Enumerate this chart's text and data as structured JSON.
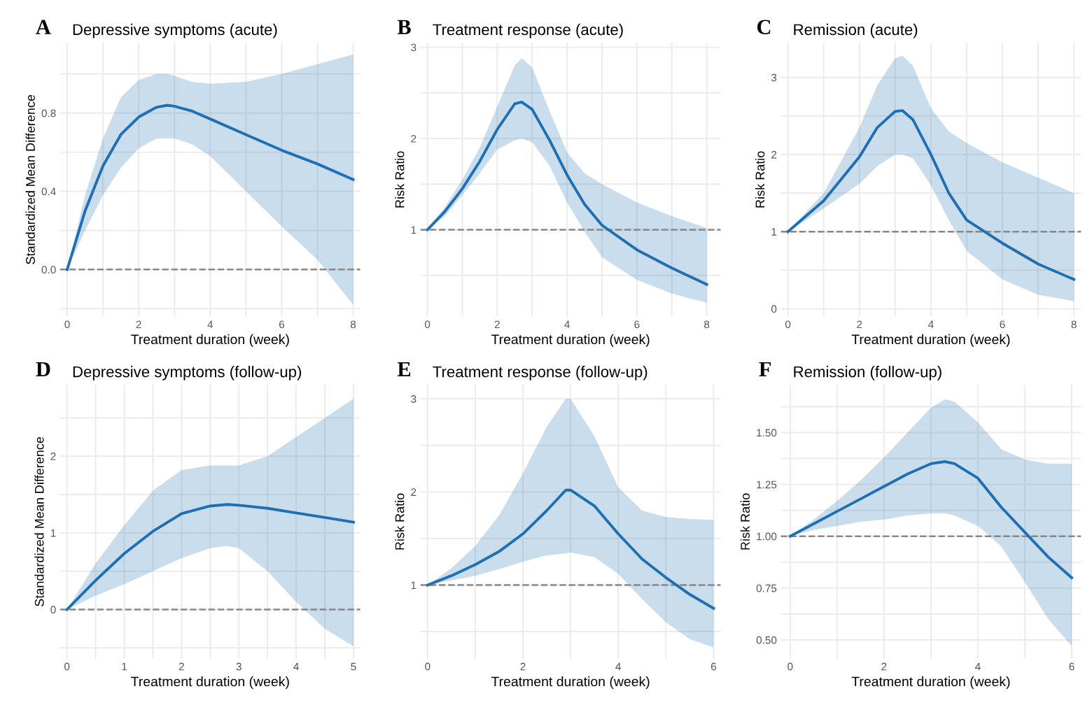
{
  "chart_data": [
    {
      "type": "line",
      "title": "Depressive symptoms (acute)",
      "annotations": [
        "A"
      ],
      "xlabel": "Treatment duration (week)",
      "ylabel": "Standardized Mean Difference",
      "xlim": [
        -0.2,
        8.2
      ],
      "ylim": [
        -0.24,
        1.16
      ],
      "xticks": [
        0,
        {
          "value": 1,
          "label": null
        },
        2,
        {
          "value": 3,
          "label": null
        },
        4,
        {
          "value": 5,
          "label": null
        },
        6,
        {
          "value": 7,
          "label": null
        },
        8
      ],
      "yticks": [
        {
          "value": -0.2,
          "label": null
        },
        {
          "value": 0,
          "label": "0.0"
        },
        {
          "value": 0.2,
          "label": null
        },
        0.4,
        {
          "value": 0.6,
          "label": null
        },
        0.8,
        {
          "value": 1.0,
          "label": null
        }
      ],
      "grid": true,
      "ref_lines": [
        {
          "axis": "y",
          "value": 0,
          "color": "#888888",
          "line_style": "dashed"
        }
      ],
      "series": [
        {
          "color": "#1f6fb4",
          "x": [
            0,
            0.5,
            1,
            1.5,
            2,
            2.5,
            2.8,
            3,
            3.5,
            4,
            5,
            6,
            7,
            8
          ],
          "values": [
            0,
            0.3,
            0.53,
            0.69,
            0.78,
            0.83,
            0.84,
            0.835,
            0.81,
            0.77,
            0.69,
            0.61,
            0.54,
            0.46
          ],
          "upper": [
            0,
            0.38,
            0.67,
            0.88,
            0.97,
            1.0,
            1.0,
            0.99,
            0.96,
            0.95,
            0.96,
            1.0,
            1.05,
            1.1
          ],
          "lower": [
            0,
            0.2,
            0.38,
            0.52,
            0.62,
            0.67,
            0.67,
            0.67,
            0.64,
            0.58,
            0.4,
            0.22,
            0.05,
            -0.18
          ]
        }
      ]
    },
    {
      "type": "line",
      "title": "Treatment response (acute)",
      "annotations": [
        "B"
      ],
      "xlabel": "Treatment duration (week)",
      "ylabel": "Risk Ratio",
      "xlim": [
        -0.2,
        8.4
      ],
      "ylim": [
        0.05,
        3.05
      ],
      "xticks": [
        0,
        {
          "value": 1,
          "label": null
        },
        2,
        {
          "value": 3,
          "label": null
        },
        4,
        {
          "value": 5,
          "label": null
        },
        6,
        {
          "value": 7,
          "label": null
        },
        8
      ],
      "yticks": [
        {
          "value": 0.5,
          "label": null
        },
        1,
        {
          "value": 1.5,
          "label": null
        },
        2,
        {
          "value": 2.5,
          "label": null
        },
        3
      ],
      "grid": true,
      "ref_lines": [
        {
          "axis": "y",
          "value": 1,
          "color": "#888888",
          "line_style": "dashed"
        }
      ],
      "series": [
        {
          "color": "#1f6fb4",
          "x": [
            0,
            0.5,
            1,
            1.5,
            2,
            2.5,
            2.7,
            3,
            3.5,
            4,
            4.5,
            5,
            6,
            7,
            8
          ],
          "values": [
            1,
            1.2,
            1.45,
            1.75,
            2.1,
            2.38,
            2.4,
            2.32,
            1.98,
            1.6,
            1.28,
            1.05,
            0.78,
            0.58,
            0.4
          ],
          "upper": [
            1,
            1.25,
            1.55,
            1.9,
            2.35,
            2.8,
            2.88,
            2.78,
            2.3,
            1.85,
            1.62,
            1.5,
            1.3,
            1.15,
            1.02
          ],
          "lower": [
            1,
            1.15,
            1.38,
            1.62,
            1.88,
            1.98,
            2.0,
            1.96,
            1.7,
            1.3,
            0.98,
            0.7,
            0.45,
            0.3,
            0.2
          ]
        }
      ]
    },
    {
      "type": "line",
      "title": "Remission (acute)",
      "annotations": [
        "C"
      ],
      "xlabel": "Treatment duration (week)",
      "ylabel": "Risk Ratio",
      "xlim": [
        -0.2,
        8.2
      ],
      "ylim": [
        -0.1,
        3.45
      ],
      "xticks": [
        0,
        {
          "value": 1,
          "label": null
        },
        2,
        {
          "value": 3,
          "label": null
        },
        4,
        {
          "value": 5,
          "label": null
        },
        6,
        {
          "value": 7,
          "label": null
        },
        8
      ],
      "yticks": [
        0,
        {
          "value": 0.5,
          "label": null
        },
        1,
        {
          "value": 1.5,
          "label": null
        },
        2,
        {
          "value": 2.5,
          "label": null
        },
        3
      ],
      "grid": true,
      "ref_lines": [
        {
          "axis": "y",
          "value": 1,
          "color": "#888888",
          "line_style": "dashed"
        }
      ],
      "series": [
        {
          "color": "#1f6fb4",
          "x": [
            0,
            1,
            2,
            2.5,
            3,
            3.2,
            3.5,
            4,
            4.5,
            5,
            6,
            7,
            8
          ],
          "values": [
            1,
            1.4,
            1.97,
            2.35,
            2.56,
            2.57,
            2.45,
            2.0,
            1.5,
            1.15,
            0.85,
            0.58,
            0.38
          ],
          "upper": [
            1,
            1.5,
            2.35,
            2.9,
            3.25,
            3.28,
            3.15,
            2.6,
            2.3,
            2.15,
            1.9,
            1.7,
            1.5
          ],
          "lower": [
            1,
            1.3,
            1.62,
            1.85,
            2.0,
            2.0,
            1.95,
            1.6,
            1.15,
            0.75,
            0.38,
            0.18,
            0.1
          ]
        }
      ]
    },
    {
      "type": "line",
      "title": "Depressive symptoms (follow-up)",
      "annotations": [
        "D"
      ],
      "xlabel": "Treatment duration (week)",
      "ylabel": "Standardized Mean Difference",
      "xlim": [
        -0.12,
        5.12
      ],
      "ylim": [
        -0.64,
        2.93
      ],
      "xticks": [
        0,
        {
          "value": 0.5,
          "label": null
        },
        1,
        {
          "value": 1.5,
          "label": null
        },
        2,
        {
          "value": 2.5,
          "label": null
        },
        3,
        {
          "value": 3.5,
          "label": null
        },
        4,
        {
          "value": 4.5,
          "label": null
        },
        5
      ],
      "yticks": [
        {
          "value": -0.5,
          "label": null
        },
        0,
        {
          "value": 0.5,
          "label": null
        },
        1,
        {
          "value": 1.5,
          "label": null
        },
        2,
        {
          "value": 2.5,
          "label": null
        }
      ],
      "grid": true,
      "ref_lines": [
        {
          "axis": "y",
          "value": 0,
          "color": "#888888",
          "line_style": "dashed"
        }
      ],
      "series": [
        {
          "color": "#1f6fb4",
          "x": [
            0,
            0.5,
            1,
            1.5,
            2,
            2.5,
            2.8,
            3,
            3.5,
            4,
            4.5,
            5
          ],
          "values": [
            0,
            0.38,
            0.73,
            1.02,
            1.25,
            1.35,
            1.37,
            1.36,
            1.32,
            1.26,
            1.2,
            1.14
          ],
          "upper": [
            0,
            0.6,
            1.1,
            1.55,
            1.82,
            1.88,
            1.88,
            1.88,
            2.0,
            2.25,
            2.5,
            2.75
          ],
          "lower": [
            0,
            0.18,
            0.33,
            0.5,
            0.67,
            0.8,
            0.83,
            0.8,
            0.5,
            0.1,
            -0.25,
            -0.48
          ]
        }
      ]
    },
    {
      "type": "line",
      "title": "Treatment response (follow-up)",
      "annotations": [
        "E"
      ],
      "xlabel": "Treatment duration (week)",
      "ylabel": "Risk Ratio",
      "xlim": [
        -0.15,
        6.15
      ],
      "ylim": [
        0.21,
        3.15
      ],
      "xticks": [
        0,
        {
          "value": 1,
          "label": null
        },
        2,
        {
          "value": 3,
          "label": null
        },
        4,
        {
          "value": 5,
          "label": null
        },
        6
      ],
      "yticks": [
        {
          "value": 0.5,
          "label": null
        },
        1,
        {
          "value": 1.5,
          "label": null
        },
        2,
        {
          "value": 2.5,
          "label": null
        },
        3
      ],
      "grid": true,
      "ref_lines": [
        {
          "axis": "y",
          "value": 1,
          "color": "#888888",
          "line_style": "dashed"
        }
      ],
      "series": [
        {
          "color": "#1f6fb4",
          "x": [
            0,
            0.5,
            1,
            1.5,
            2,
            2.5,
            2.9,
            3,
            3.5,
            4,
            4.5,
            5,
            5.5,
            6
          ],
          "values": [
            1,
            1.1,
            1.22,
            1.36,
            1.55,
            1.8,
            2.02,
            2.02,
            1.85,
            1.55,
            1.28,
            1.08,
            0.9,
            0.75
          ],
          "upper": [
            1,
            1.18,
            1.42,
            1.75,
            2.2,
            2.7,
            3.0,
            3.0,
            2.6,
            2.05,
            1.8,
            1.73,
            1.71,
            1.7
          ],
          "lower": [
            1,
            1.05,
            1.1,
            1.17,
            1.25,
            1.32,
            1.34,
            1.35,
            1.3,
            1.12,
            0.85,
            0.6,
            0.42,
            0.33
          ]
        }
      ]
    },
    {
      "type": "line",
      "title": "Remission (follow-up)",
      "annotations": [
        "F"
      ],
      "xlabel": "Treatment duration (week)",
      "ylabel": "Risk Ratio",
      "xlim": [
        -0.2,
        6.2
      ],
      "ylim": [
        0.41,
        1.73
      ],
      "xticks": [
        0,
        {
          "value": 1,
          "label": null
        },
        2,
        {
          "value": 3,
          "label": null
        },
        4,
        {
          "value": 5,
          "label": null
        },
        6
      ],
      "yticks": [
        {
          "value": 0.5,
          "label": "0.50"
        },
        {
          "value": 0.625,
          "label": null
        },
        {
          "value": 0.75,
          "label": "0.75"
        },
        {
          "value": 0.875,
          "label": null
        },
        {
          "value": 1.0,
          "label": "1.00"
        },
        {
          "value": 1.125,
          "label": null
        },
        {
          "value": 1.25,
          "label": "1.25"
        },
        {
          "value": 1.375,
          "label": null
        },
        {
          "value": 1.5,
          "label": "1.50"
        },
        {
          "value": 1.625,
          "label": null
        }
      ],
      "grid": true,
      "ref_lines": [
        {
          "axis": "y",
          "value": 1,
          "color": "#888888",
          "line_style": "dashed"
        }
      ],
      "series": [
        {
          "color": "#1f6fb4",
          "x": [
            0,
            0.5,
            1,
            1.5,
            2,
            2.5,
            3,
            3.3,
            3.5,
            4,
            4.5,
            5,
            5.5,
            6
          ],
          "values": [
            1,
            1.06,
            1.12,
            1.18,
            1.24,
            1.3,
            1.35,
            1.36,
            1.35,
            1.28,
            1.14,
            1.02,
            0.9,
            0.8
          ],
          "upper": [
            1,
            1.08,
            1.17,
            1.27,
            1.38,
            1.5,
            1.62,
            1.66,
            1.65,
            1.55,
            1.42,
            1.37,
            1.35,
            1.35
          ],
          "lower": [
            1,
            1.03,
            1.05,
            1.07,
            1.08,
            1.1,
            1.11,
            1.11,
            1.1,
            1.05,
            0.95,
            0.78,
            0.6,
            0.47
          ]
        }
      ]
    }
  ]
}
